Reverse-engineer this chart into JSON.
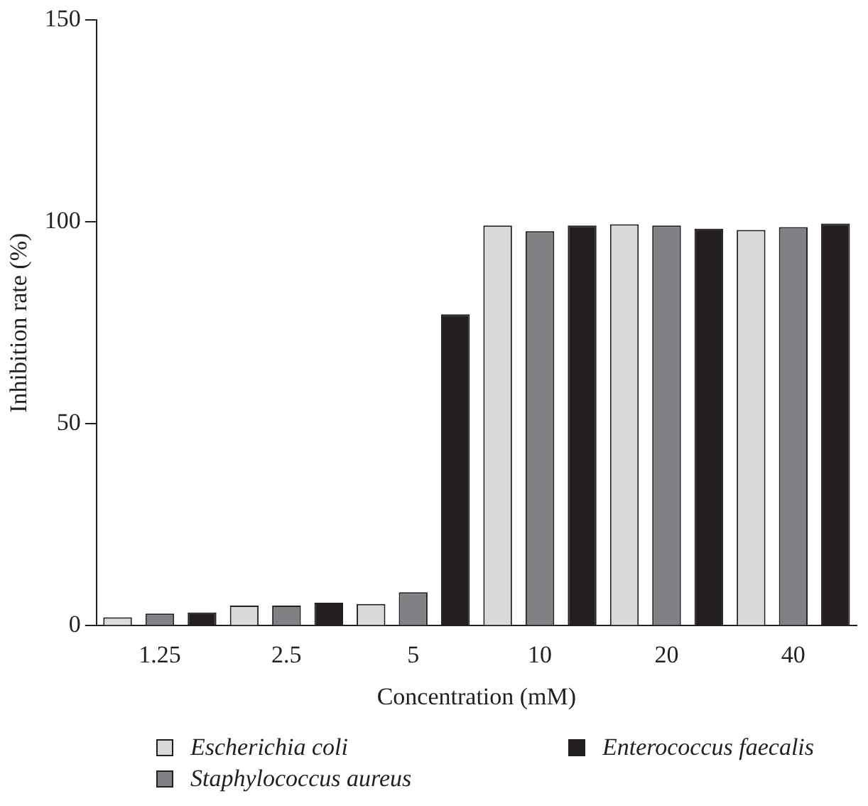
{
  "chart_data": {
    "type": "bar",
    "xlabel": "Concentration (mM)",
    "ylabel": "Inhibition rate (%)",
    "categories": [
      "1.25",
      "2.5",
      "5",
      "10",
      "20",
      "40"
    ],
    "series": [
      {
        "name": "Escherichia coli",
        "color": "#d9dadc",
        "values": [
          2.1,
          5.0,
          5.4,
          99.1,
          99.4,
          98.0
        ]
      },
      {
        "name": "Staphylococcus aureus",
        "color": "#808184",
        "values": [
          3.0,
          5.0,
          8.3,
          97.7,
          99.1,
          98.7
        ]
      },
      {
        "name": "Enterococcus faecalis",
        "color": "#231f20",
        "values": [
          3.3,
          5.7,
          77.1,
          99.1,
          98.3,
          99.6
        ]
      }
    ],
    "ylim": [
      0,
      150
    ],
    "yticks": [
      0,
      50,
      100,
      150
    ],
    "grid": false,
    "legend": "bottom"
  }
}
